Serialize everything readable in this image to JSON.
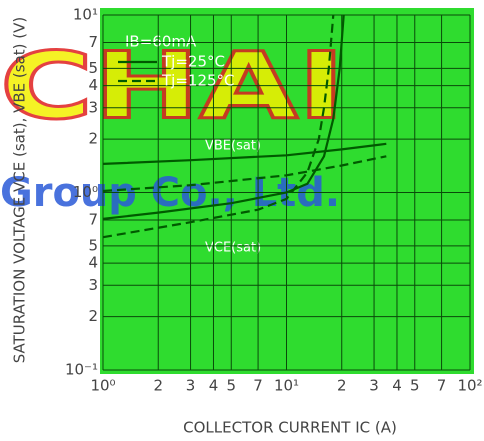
{
  "chart_data": {
    "type": "line",
    "x_label": "COLLECTOR CURRENT    IC (A)",
    "y_label": "SATURATION VOLTAGE   VCE (sat),  VBE (sat) (V)",
    "log_x": true,
    "log_y": true,
    "grid": true,
    "xlim": [
      1,
      100
    ],
    "ylim": [
      0.1,
      10
    ],
    "xticks": [
      {
        "value": 1,
        "label": "10⁰"
      },
      2,
      3,
      4,
      5,
      7,
      {
        "value": 10,
        "label": "10¹"
      },
      {
        "value": 20,
        "label": "2"
      },
      {
        "value": 30,
        "label": "3"
      },
      {
        "value": 40,
        "label": "4"
      },
      {
        "value": 50,
        "label": "5"
      },
      {
        "value": 70,
        "label": "7"
      },
      {
        "value": 100,
        "label": "10²"
      }
    ],
    "yticks": [
      {
        "value": 0.1,
        "label": "10⁻¹"
      },
      {
        "value": 0.2,
        "label": "2"
      },
      {
        "value": 0.3,
        "label": "3"
      },
      {
        "value": 0.4,
        "label": "4"
      },
      {
        "value": 0.5,
        "label": "5"
      },
      {
        "value": 0.7,
        "label": "7"
      },
      {
        "value": 1,
        "label": "10⁰"
      },
      2,
      3,
      4,
      5,
      7,
      {
        "value": 10,
        "label": "10¹"
      }
    ],
    "condition": "IB=60mA",
    "legend": [
      {
        "label": "Tj=25°C",
        "style": "solid"
      },
      {
        "label": "Tj=125°C",
        "style": "dashed"
      }
    ],
    "annotations": [
      "VBE(sat)",
      "VCE(sat)"
    ],
    "watermark": [
      "CHAI",
      "Group Co., Ltd."
    ],
    "color": "#005a00",
    "series": [
      {
        "style": "solid",
        "x": [
          1,
          3,
          10,
          20,
          35
        ],
        "values": [
          1.45,
          1.52,
          1.62,
          1.75,
          1.88
        ]
      },
      {
        "style": "dashed",
        "x": [
          1,
          3,
          10,
          20,
          35
        ],
        "values": [
          1.02,
          1.1,
          1.25,
          1.42,
          1.6
        ]
      },
      {
        "style": "solid",
        "x": [
          1,
          2,
          5,
          10,
          13,
          16,
          18,
          19.5,
          20.5
        ],
        "values": [
          0.71,
          0.77,
          0.87,
          1.0,
          1.12,
          1.6,
          2.6,
          5,
          10
        ]
      },
      {
        "style": "dashed",
        "x": [
          1,
          3,
          7,
          10,
          13,
          15,
          16,
          17,
          18
        ],
        "values": [
          0.56,
          0.68,
          0.8,
          0.92,
          1.3,
          2,
          3,
          5,
          10
        ]
      }
    ]
  }
}
